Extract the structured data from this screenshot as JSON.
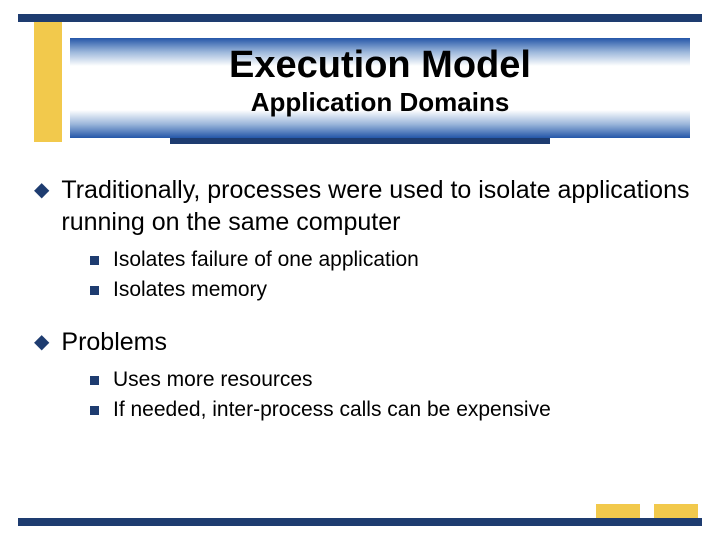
{
  "colors": {
    "accent_dark": "#1e3c70",
    "accent_yellow": "#f2c94c",
    "gradient_mid": "#9cb7db",
    "text": "#000000",
    "background": "#ffffff"
  },
  "typography": {
    "title_fontsize": 38,
    "subtitle_fontsize": 26,
    "body_fontsize": 25,
    "sub_fontsize": 21,
    "font_family": "Arial"
  },
  "header": {
    "title": "Execution Model",
    "subtitle": "Application Domains"
  },
  "bullets": [
    {
      "level": 1,
      "text": "Traditionally, processes were used to isolate applications running on the same computer"
    },
    {
      "level": 2,
      "text": "Isolates failure of one application"
    },
    {
      "level": 2,
      "text": "Isolates memory"
    },
    {
      "level": 1,
      "text": "Problems"
    },
    {
      "level": 2,
      "text": "Uses more resources"
    },
    {
      "level": 2,
      "text": "If needed, inter-process calls can be expensive"
    }
  ]
}
